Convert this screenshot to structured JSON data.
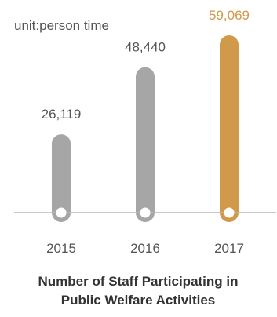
{
  "chart_data": {
    "type": "bar",
    "unit_label": "unit:person time",
    "categories": [
      "2015",
      "2016",
      "2017"
    ],
    "values": [
      26119,
      48440,
      59069
    ],
    "value_labels": [
      "26,119",
      "48,440",
      "59,069"
    ],
    "colors": [
      "#a6a6a6",
      "#a6a6a6",
      "#d19a4a"
    ],
    "value_label_colors": [
      "#555555",
      "#555555",
      "#d19a4a"
    ],
    "axis_color": "#b5b5b5",
    "ylim": [
      0,
      59069
    ],
    "grid": false,
    "title": "Number of Staff Participating in Public Welfare Activities",
    "title_lines": [
      "Number of Staff Participating in",
      "Public Welfare Activities"
    ]
  }
}
